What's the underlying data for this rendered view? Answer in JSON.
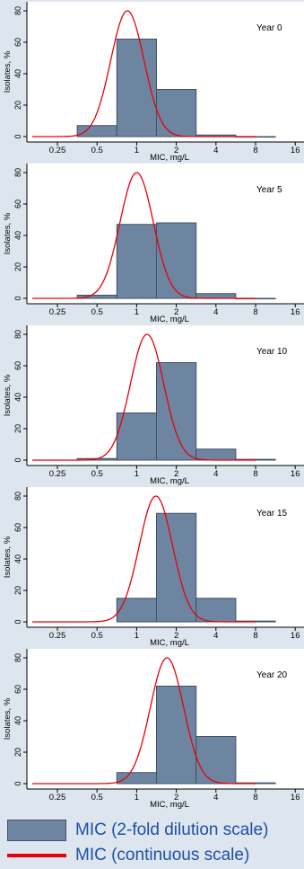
{
  "chart_data": [
    {
      "type": "bar",
      "annotation": "Year 0",
      "ylabel": "Isolates, %",
      "xlabel": "MIC, mg/L",
      "x_scale": "log2",
      "xticks": [
        "0.25",
        "0.5",
        "1",
        "2",
        "4",
        "8",
        "16"
      ],
      "yticks": [
        "0",
        "20",
        "40",
        "60",
        "80"
      ],
      "ylim": [
        0,
        87
      ],
      "bars": [
        {
          "mic": "0.5",
          "value": 7
        },
        {
          "mic": "1",
          "value": 62
        },
        {
          "mic": "2",
          "value": 30
        },
        {
          "mic": "4",
          "value": 1
        },
        {
          "mic": "8",
          "value": 0
        }
      ],
      "curve": {
        "peak_mic": 0.85,
        "peak": 80,
        "sd_log2": 0.42
      }
    },
    {
      "type": "bar",
      "annotation": "Year 5",
      "ylabel": "Isolates, %",
      "xlabel": "MIC, mg/L",
      "x_scale": "log2",
      "xticks": [
        "0.25",
        "0.5",
        "1",
        "2",
        "4",
        "8",
        "16"
      ],
      "yticks": [
        "0",
        "20",
        "40",
        "60",
        "80"
      ],
      "ylim": [
        0,
        87
      ],
      "bars": [
        {
          "mic": "0.5",
          "value": 2
        },
        {
          "mic": "1",
          "value": 47
        },
        {
          "mic": "2",
          "value": 48
        },
        {
          "mic": "4",
          "value": 3
        },
        {
          "mic": "8",
          "value": 0
        }
      ],
      "curve": {
        "peak_mic": 1.0,
        "peak": 80,
        "sd_log2": 0.42
      }
    },
    {
      "type": "bar",
      "annotation": "Year 10",
      "ylabel": "Isolates, %",
      "xlabel": "MIC, mg/L",
      "x_scale": "log2",
      "xticks": [
        "0.25",
        "0.5",
        "1",
        "2",
        "4",
        "8",
        "16"
      ],
      "yticks": [
        "0",
        "20",
        "40",
        "60",
        "80"
      ],
      "ylim": [
        0,
        87
      ],
      "bars": [
        {
          "mic": "0.5",
          "value": 1
        },
        {
          "mic": "1",
          "value": 30
        },
        {
          "mic": "2",
          "value": 62
        },
        {
          "mic": "4",
          "value": 7
        },
        {
          "mic": "8",
          "value": 0.5
        }
      ],
      "curve": {
        "peak_mic": 1.2,
        "peak": 80,
        "sd_log2": 0.42
      }
    },
    {
      "type": "bar",
      "annotation": "Year 15",
      "ylabel": "Isolates, %",
      "xlabel": "MIC, mg/L",
      "x_scale": "log2",
      "xticks": [
        "0.25",
        "0.5",
        "1",
        "2",
        "4",
        "8",
        "16"
      ],
      "yticks": [
        "0",
        "20",
        "40",
        "60",
        "80"
      ],
      "ylim": [
        0,
        87
      ],
      "bars": [
        {
          "mic": "1",
          "value": 15
        },
        {
          "mic": "2",
          "value": 69
        },
        {
          "mic": "4",
          "value": 15
        },
        {
          "mic": "8",
          "value": 0.5
        }
      ],
      "curve": {
        "peak_mic": 1.4,
        "peak": 80,
        "sd_log2": 0.42
      }
    },
    {
      "type": "bar",
      "annotation": "Year 20",
      "ylabel": "Isolates, %",
      "xlabel": "MIC, mg/L",
      "x_scale": "log2",
      "xticks": [
        "0.25",
        "0.5",
        "1",
        "2",
        "4",
        "8",
        "16"
      ],
      "yticks": [
        "0",
        "20",
        "40",
        "60",
        "80"
      ],
      "ylim": [
        0,
        87
      ],
      "bars": [
        {
          "mic": "1",
          "value": 7
        },
        {
          "mic": "2",
          "value": 62
        },
        {
          "mic": "4",
          "value": 30
        },
        {
          "mic": "8",
          "value": 0.5
        }
      ],
      "curve": {
        "peak_mic": 1.7,
        "peak": 80,
        "sd_log2": 0.42
      }
    }
  ],
  "legend": {
    "bars_label": "MIC (2-fold dilution scale)",
    "curve_label": "MIC (continuous scale)"
  },
  "colors": {
    "bar_fill": "#6d85a0",
    "bar_stroke": "#3f5368",
    "curve": "#e8000b",
    "plot_bg": "#ffffff",
    "page_bg": "#dde6ee"
  }
}
